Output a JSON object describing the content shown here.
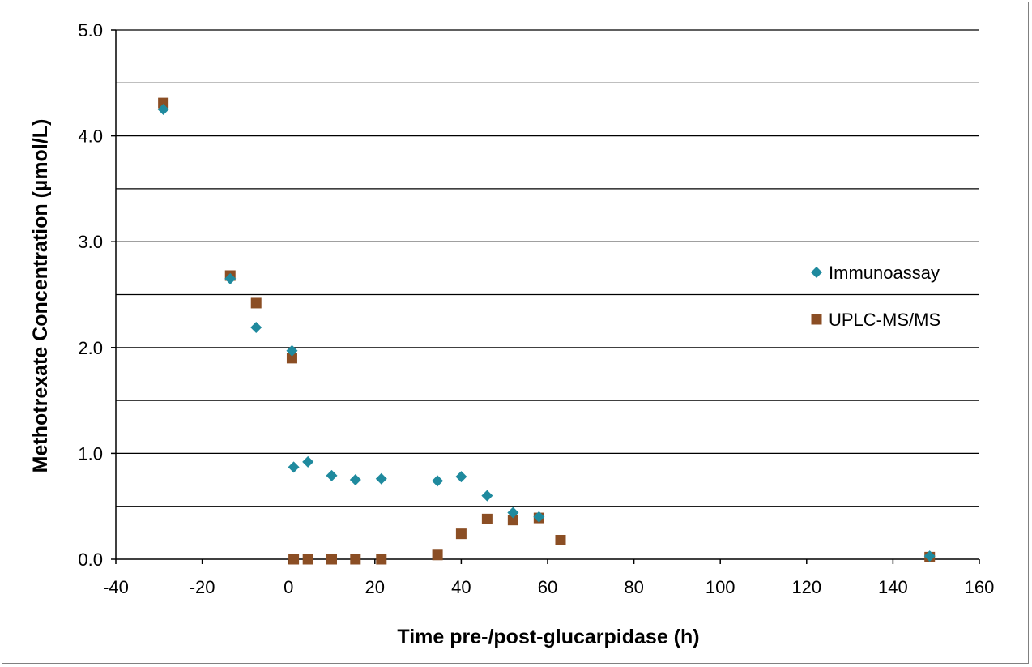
{
  "chart_data": {
    "type": "scatter",
    "title": "",
    "xlabel": "Time pre-/post-glucarpidase  (h)",
    "ylabel": "Methotrexate Concentration (µmol/L)",
    "xlim": [
      -40,
      160
    ],
    "ylim": [
      0,
      5
    ],
    "x_ticks": [
      -40,
      -20,
      0,
      20,
      40,
      60,
      80,
      100,
      120,
      140,
      160
    ],
    "x_tick_labels": [
      "-40",
      "-20",
      "0",
      "20",
      "40",
      "60",
      "80",
      "100",
      "120",
      "140",
      "160"
    ],
    "y_ticks": [
      0,
      1,
      2,
      3,
      4,
      5
    ],
    "y_tick_labels": [
      "0.0",
      "1.0",
      "2.0",
      "3.0",
      "4.0",
      "5.0"
    ],
    "y_gridlines": [
      0.5,
      1.0,
      1.5,
      2.0,
      2.5,
      3.0,
      3.5,
      4.0,
      4.5,
      5.0
    ],
    "grid": true,
    "legend_position": "right",
    "series": [
      {
        "name": "Immunoassay",
        "marker": "diamond",
        "color": "#1f8a9e",
        "points": [
          {
            "x": -29,
            "y": 4.25
          },
          {
            "x": -13.5,
            "y": 2.65
          },
          {
            "x": -7.5,
            "y": 2.19
          },
          {
            "x": 0.8,
            "y": 1.97
          },
          {
            "x": 1.2,
            "y": 0.87
          },
          {
            "x": 4.5,
            "y": 0.92
          },
          {
            "x": 10,
            "y": 0.79
          },
          {
            "x": 15.5,
            "y": 0.75
          },
          {
            "x": 21.5,
            "y": 0.76
          },
          {
            "x": 34.5,
            "y": 0.74
          },
          {
            "x": 40,
            "y": 0.78
          },
          {
            "x": 46,
            "y": 0.6
          },
          {
            "x": 52,
            "y": 0.44
          },
          {
            "x": 58,
            "y": 0.4
          },
          {
            "x": 148.5,
            "y": 0.03
          }
        ]
      },
      {
        "name": "UPLC-MS/MS",
        "marker": "square",
        "color": "#8b4e24",
        "points": [
          {
            "x": -29,
            "y": 4.31
          },
          {
            "x": -13.5,
            "y": 2.68
          },
          {
            "x": -7.5,
            "y": 2.42
          },
          {
            "x": 0.8,
            "y": 1.9
          },
          {
            "x": 1.2,
            "y": 0.0
          },
          {
            "x": 4.5,
            "y": 0.0
          },
          {
            "x": 10,
            "y": 0.0
          },
          {
            "x": 15.5,
            "y": 0.0
          },
          {
            "x": 21.5,
            "y": 0.0
          },
          {
            "x": 34.5,
            "y": 0.04
          },
          {
            "x": 40,
            "y": 0.24
          },
          {
            "x": 46,
            "y": 0.38
          },
          {
            "x": 52,
            "y": 0.37
          },
          {
            "x": 58,
            "y": 0.39
          },
          {
            "x": 63,
            "y": 0.18
          },
          {
            "x": 148.5,
            "y": 0.02
          }
        ]
      }
    ]
  }
}
